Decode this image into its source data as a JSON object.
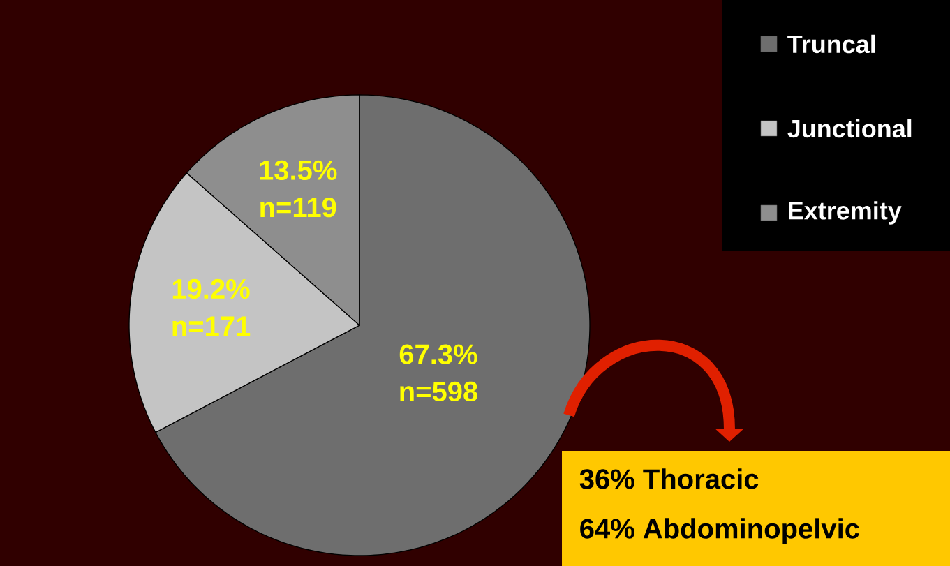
{
  "chart_data": {
    "type": "pie",
    "categories": [
      "Truncal",
      "Junctional",
      "Extremity"
    ],
    "values": [
      67.3,
      19.2,
      13.5
    ],
    "colors": [
      "#6e6e6e",
      "#c4c4c4",
      "#8e8e8e"
    ],
    "value_labels": [
      "67.3% n=598",
      "19.2% n=171",
      "13.5% n=119"
    ],
    "legend": "top right",
    "annotations": [
      "36% Thoracic",
      "64% Abdominopelvic"
    ]
  }
}
